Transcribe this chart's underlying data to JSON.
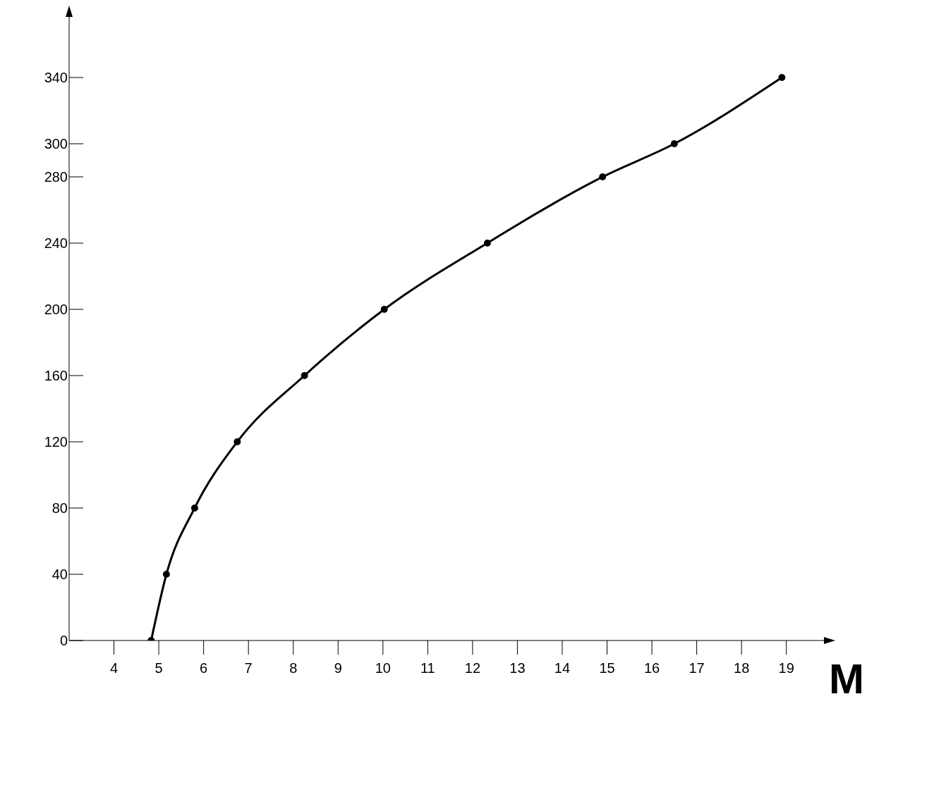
{
  "chart_data": {
    "type": "line",
    "xlabel": "M",
    "x": [
      4.83,
      5.17,
      5.8,
      6.75,
      8.25,
      10.03,
      12.33,
      14.9,
      16.5,
      18.9
    ],
    "series": [
      {
        "color": "#000000",
        "values": [
          0,
          40,
          80,
          120,
          160,
          200,
          240,
          280,
          300,
          340
        ]
      }
    ],
    "xlim": [
      3,
      19.87
    ],
    "xticks": [
      4,
      5,
      6,
      7,
      8,
      9,
      10,
      11,
      12,
      13,
      14,
      15,
      16,
      17,
      18,
      19
    ],
    "ylim": [
      0,
      380
    ],
    "yticks": [
      0,
      40,
      80,
      120,
      160,
      200,
      240,
      280,
      300,
      340
    ],
    "grid": false,
    "legend": false,
    "marker": "circle",
    "line_style": "solid"
  }
}
